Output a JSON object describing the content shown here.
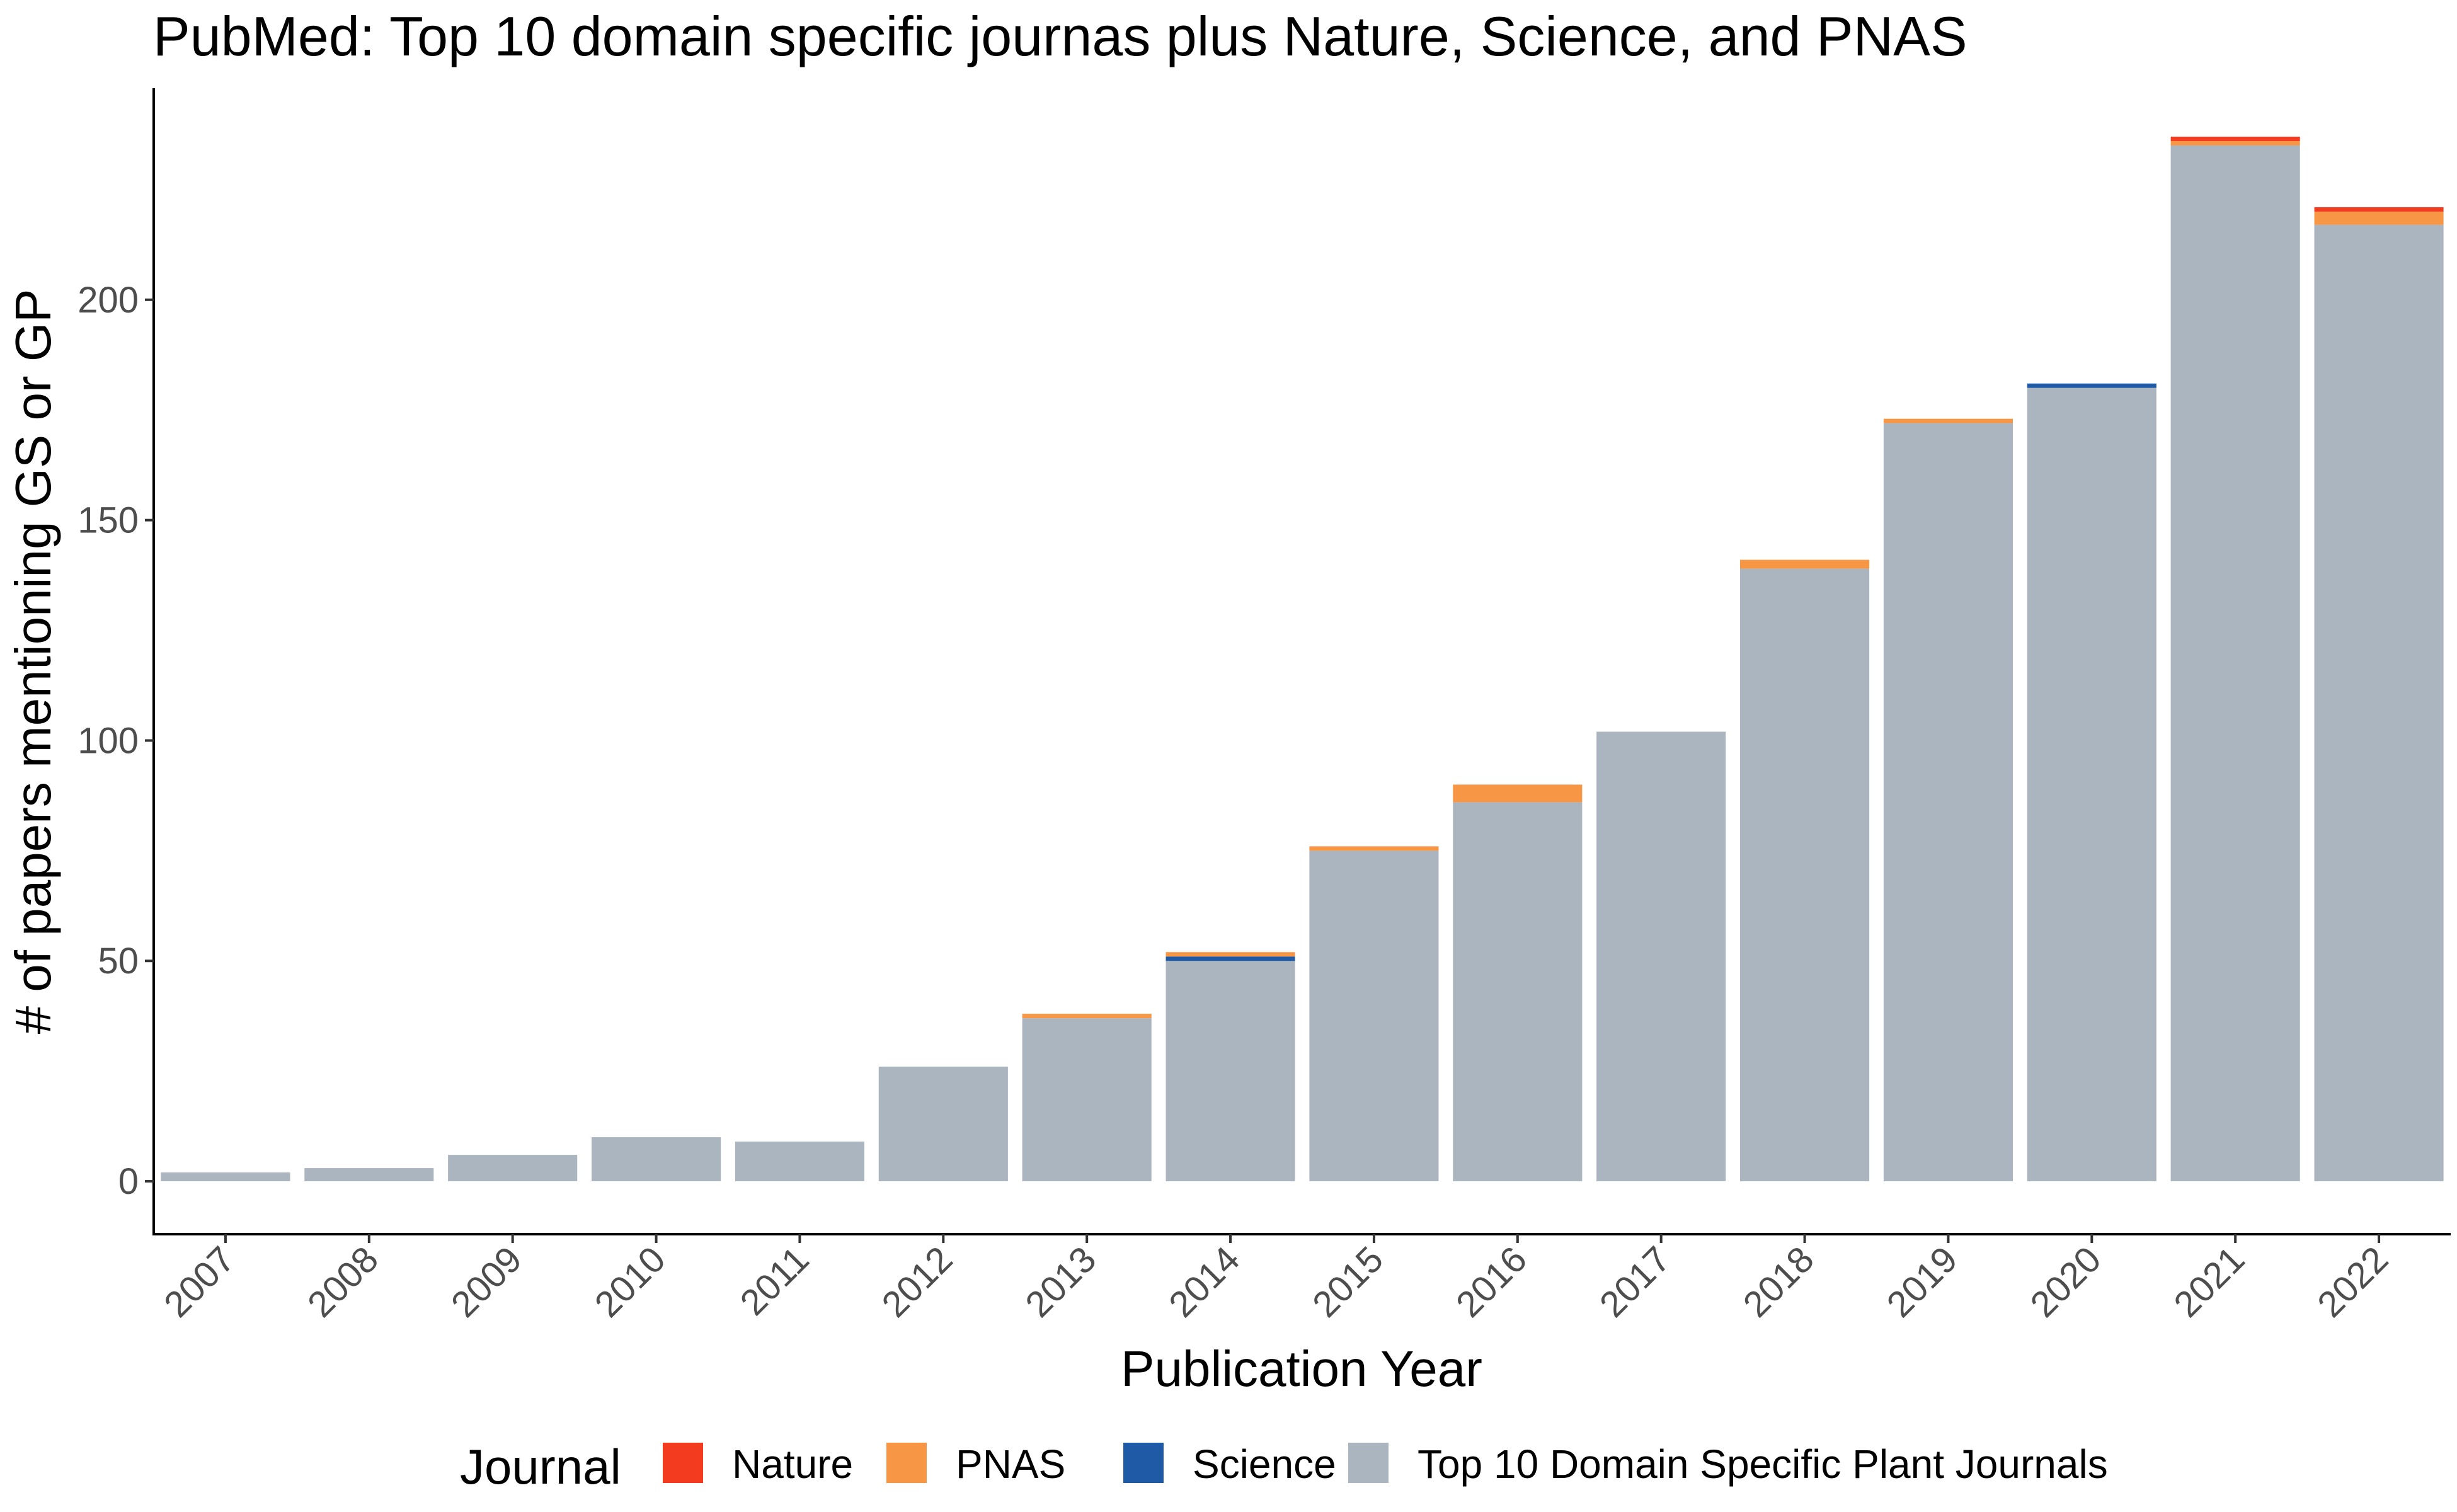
{
  "chart_data": {
    "type": "bar",
    "stacked": true,
    "title": "PubMed: Top 10 domain specific journas plus Nature, Science, and PNAS",
    "xlabel": "Publication Year",
    "ylabel": "# of papers mentioning GS or GP",
    "categories": [
      "2007",
      "2008",
      "2009",
      "2010",
      "2011",
      "2012",
      "2013",
      "2014",
      "2015",
      "2016",
      "2017",
      "2018",
      "2019",
      "2020",
      "2021",
      "2022"
    ],
    "ylim": [
      -12,
      248
    ],
    "yticks": [
      0,
      50,
      100,
      150,
      200
    ],
    "ytick_labels": [
      "0",
      "50",
      "100",
      "150",
      "200"
    ],
    "grid": false,
    "legend": {
      "title": "Journal",
      "position": "bottom"
    },
    "series": [
      {
        "name": "Top 10 Domain Specific Plant Journals",
        "color": "#abb5c0",
        "values": [
          2,
          3,
          6,
          10,
          9,
          26,
          37,
          50,
          75,
          86,
          102,
          139,
          172,
          180,
          235,
          217
        ]
      },
      {
        "name": "Science",
        "color": "#1f5aa6",
        "values": [
          0,
          0,
          0,
          0,
          0,
          0,
          0,
          1,
          0,
          0,
          0,
          0,
          0,
          1,
          0,
          0
        ]
      },
      {
        "name": "PNAS",
        "color": "#f79645",
        "values": [
          0,
          0,
          0,
          0,
          0,
          0,
          1,
          1,
          1,
          4,
          0,
          2,
          1,
          0,
          1,
          3
        ]
      },
      {
        "name": "Nature",
        "color": "#f23b1f",
        "values": [
          0,
          0,
          0,
          0,
          0,
          0,
          0,
          0,
          0,
          0,
          0,
          0,
          0,
          0,
          1,
          1
        ]
      }
    ],
    "legend_order": [
      "Nature",
      "PNAS",
      "Science",
      "Top 10 Domain Specific Plant Journals"
    ]
  }
}
